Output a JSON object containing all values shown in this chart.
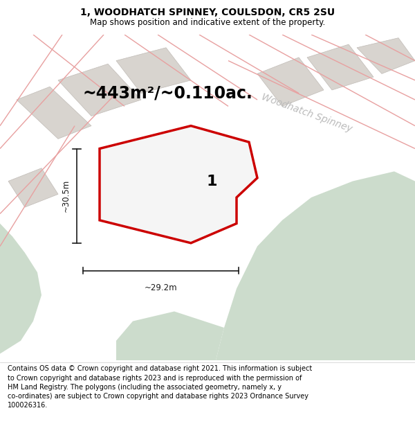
{
  "title": "1, WOODHATCH SPINNEY, COULSDON, CR5 2SU",
  "subtitle": "Map shows position and indicative extent of the property.",
  "footer": "Contains OS data © Crown copyright and database right 2021. This information is subject\nto Crown copyright and database rights 2023 and is reproduced with the permission of\nHM Land Registry. The polygons (including the associated geometry, namely x, y\nco-ordinates) are subject to Crown copyright and database rights 2023 Ordnance Survey\n100026316.",
  "area_text": "~443m²/~0.110ac.",
  "road_label": "Woodhatch Spinney",
  "label_1": "1",
  "dim_width": "~29.2m",
  "dim_height": "~30.5m",
  "map_bg": "#ffffff",
  "green_color": "#ccdccc",
  "block_gray": "#d8d4cf",
  "road_line_color": "#e8a0a0",
  "subject_fill": "#f5f5f5",
  "subject_outline": "#cc0000",
  "dim_color": "#1a1a1a",
  "road_label_color": "#bbbbbb",
  "title_fontsize": 10,
  "subtitle_fontsize": 8.5,
  "footer_fontsize": 7,
  "area_fontsize": 17,
  "label_fontsize": 16,
  "road_label_fontsize": 10
}
